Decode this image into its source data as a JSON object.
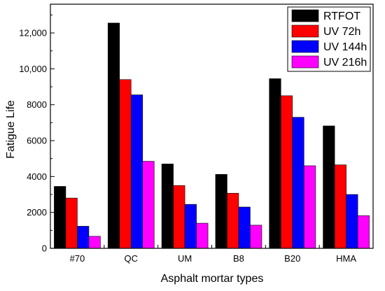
{
  "chart_data": {
    "type": "bar",
    "title": "",
    "xlabel": "Asphalt mortar types",
    "ylabel": "Fatigue Life",
    "categories": [
      "#70",
      "QC",
      "UM",
      "B8",
      "B20",
      "HMA"
    ],
    "series": [
      {
        "name": "RTFOT",
        "color": "#000000",
        "values": [
          3450,
          12550,
          4700,
          4120,
          9450,
          6820
        ]
      },
      {
        "name": "UV 72h",
        "color": "#ff0000",
        "values": [
          2800,
          9400,
          3500,
          3070,
          8500,
          4650
        ]
      },
      {
        "name": "UV 144h",
        "color": "#0000ff",
        "values": [
          1230,
          8550,
          2450,
          2300,
          7300,
          3000
        ]
      },
      {
        "name": "UV 216h",
        "color": "#ff00ff",
        "values": [
          670,
          4850,
          1400,
          1290,
          4600,
          1820
        ]
      }
    ],
    "ylim": [
      0,
      13600
    ],
    "yticks": [
      0,
      2000,
      4000,
      6000,
      8000,
      10000,
      12000
    ],
    "ytick_labels": [
      "0",
      "2000",
      "4000",
      "6000",
      "8000",
      "10,000",
      "12,000"
    ],
    "grid": false,
    "legend_position": "top-right"
  }
}
